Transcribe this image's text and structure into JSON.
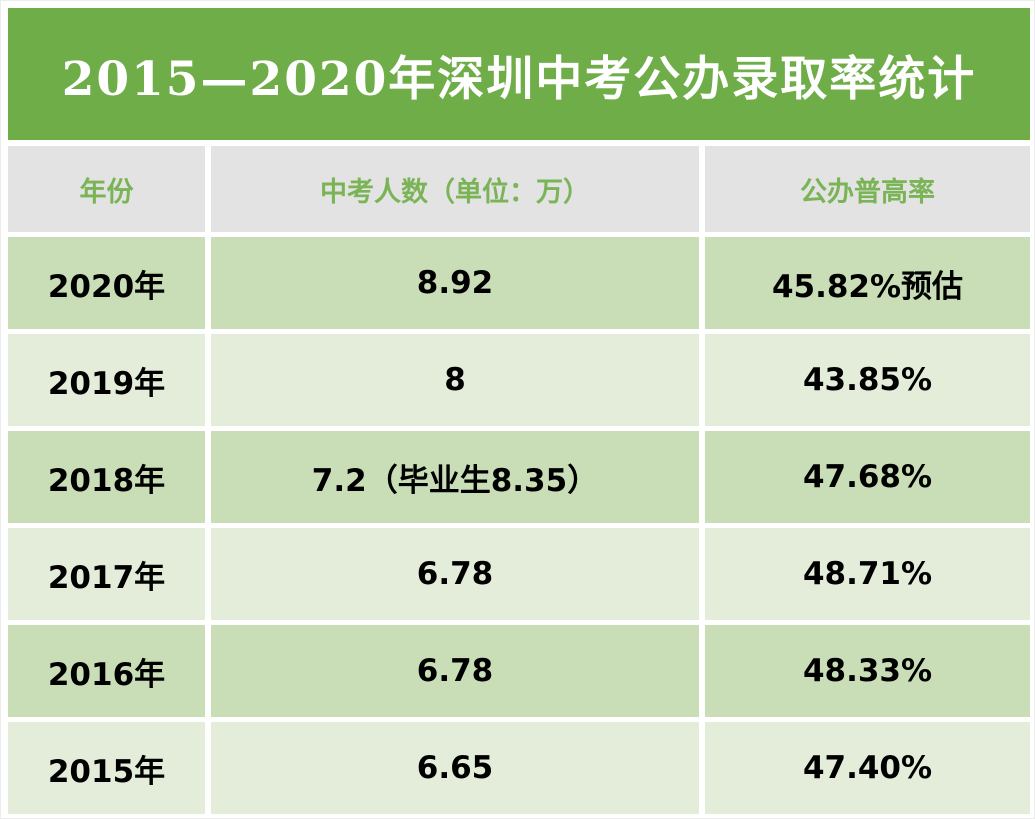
{
  "chart_data": {
    "type": "table",
    "title": "2015—2020年深圳中考公办录取率统计",
    "columns": [
      "年份",
      "中考人数（单位：万）",
      "公办普高率"
    ],
    "rows": [
      [
        "2020年",
        "8.92",
        "45.82%预估"
      ],
      [
        "2019年",
        "8",
        "43.85%"
      ],
      [
        "2018年",
        "7.2（毕业生8.35）",
        "47.68%"
      ],
      [
        "2017年",
        "6.78",
        "48.71%"
      ],
      [
        "2016年",
        "6.78",
        "48.33%"
      ],
      [
        "2015年",
        "6.65",
        "47.40%"
      ]
    ]
  },
  "colors": {
    "band-green": "#6fad48",
    "header-bg": "#e3e3e3",
    "header-text": "#7ab456",
    "row-dark": "#c9deb6",
    "row-light": "#e4edda",
    "data-text": "#000000",
    "background": "#ffffff"
  }
}
